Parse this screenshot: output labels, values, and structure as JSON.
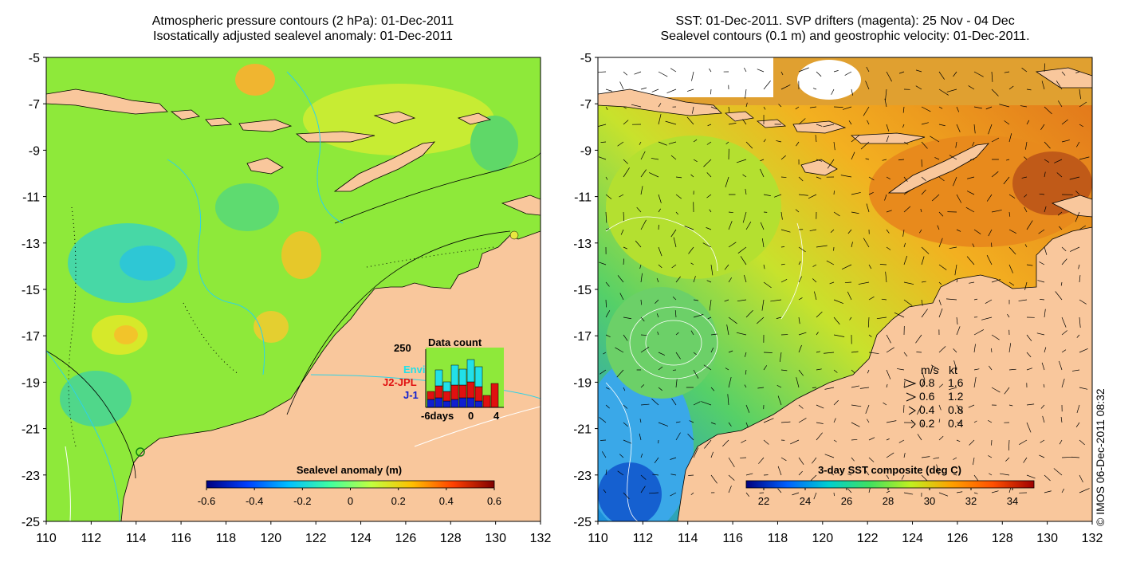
{
  "left_panel": {
    "title_line1": "Atmospheric pressure contours (2 hPa): 01-Dec-2011",
    "title_line2": "Isostatically adjusted sealevel anomaly: 01-Dec-2011",
    "x_ticks": [
      "110",
      "112",
      "114",
      "116",
      "118",
      "120",
      "122",
      "124",
      "126",
      "128",
      "130",
      "132"
    ],
    "y_ticks": [
      "-5",
      "-7",
      "-9",
      "-11",
      "-13",
      "-15",
      "-17",
      "-19",
      "-21",
      "-23",
      "-25"
    ],
    "colorbar": {
      "label": "Sealevel anomaly (m)",
      "ticks": [
        "-0.6",
        "-0.4",
        "-0.2",
        "0",
        "0.2",
        "0.4",
        "0.6"
      ]
    },
    "inset": {
      "title": "Data count",
      "y_label": "250",
      "x_ticks": [
        "-6days",
        "0",
        "4"
      ],
      "legend": [
        {
          "label": "Envi",
          "color": "#22e0e8"
        },
        {
          "label": "J2-JPL",
          "color": "#e01010"
        },
        {
          "label": "J-1",
          "color": "#1020d0"
        }
      ],
      "bars": [
        {
          "envi": 0.0,
          "j2": 0.1,
          "j1": 0.1
        },
        {
          "envi": 0.2,
          "j2": 0.15,
          "j1": 0.12
        },
        {
          "envi": 0.12,
          "j2": 0.12,
          "j1": 0.08
        },
        {
          "envi": 0.25,
          "j2": 0.18,
          "j1": 0.1
        },
        {
          "envi": 0.2,
          "j2": 0.16,
          "j1": 0.12
        },
        {
          "envi": 0.28,
          "j2": 0.2,
          "j1": 0.12
        },
        {
          "envi": 0.25,
          "j2": 0.18,
          "j1": 0.08
        },
        {
          "envi": 0.0,
          "j2": 0.15,
          "j1": 0.0
        },
        {
          "envi": 0.0,
          "j2": 0.3,
          "j1": 0.0
        }
      ]
    }
  },
  "right_panel": {
    "title_line1": "SST: 01-Dec-2011. SVP drifters (magenta): 25 Nov - 04 Dec",
    "title_line2": "Sealevel contours (0.1 m) and geostrophic velocity: 01-Dec-2011.",
    "x_ticks": [
      "110",
      "112",
      "114",
      "116",
      "118",
      "120",
      "122",
      "124",
      "126",
      "128",
      "130",
      "132"
    ],
    "y_ticks": [
      "-5",
      "-7",
      "-9",
      "-11",
      "-13",
      "-15",
      "-17",
      "-19",
      "-21",
      "-23",
      "-25"
    ],
    "colorbar": {
      "label": "3-day SST composite (deg C)",
      "ticks": [
        "22",
        "24",
        "26",
        "28",
        "30",
        "32",
        "34"
      ]
    },
    "speed_legend": {
      "header_ms": "m/s",
      "header_kt": "kt",
      "rows": [
        {
          "ms": "0.8",
          "kt": "1.6"
        },
        {
          "ms": "0.6",
          "kt": "1.2"
        },
        {
          "ms": "0.4",
          "kt": "0.8"
        },
        {
          "ms": "0.2",
          "kt": "0.4"
        }
      ]
    }
  },
  "stamp": "© IMOS 06-Dec-2011 08:32",
  "colors": {
    "land": "#f9c79c",
    "sla_ramp": [
      "#00007f",
      "#0040ff",
      "#00c0ff",
      "#40ffa0",
      "#c0ff40",
      "#ffc000",
      "#ff4000",
      "#800000"
    ],
    "sst_ramp": [
      "#00007f",
      "#0060ff",
      "#00d0d0",
      "#40e060",
      "#c0f020",
      "#ffa000",
      "#ff5000",
      "#a00000"
    ]
  }
}
